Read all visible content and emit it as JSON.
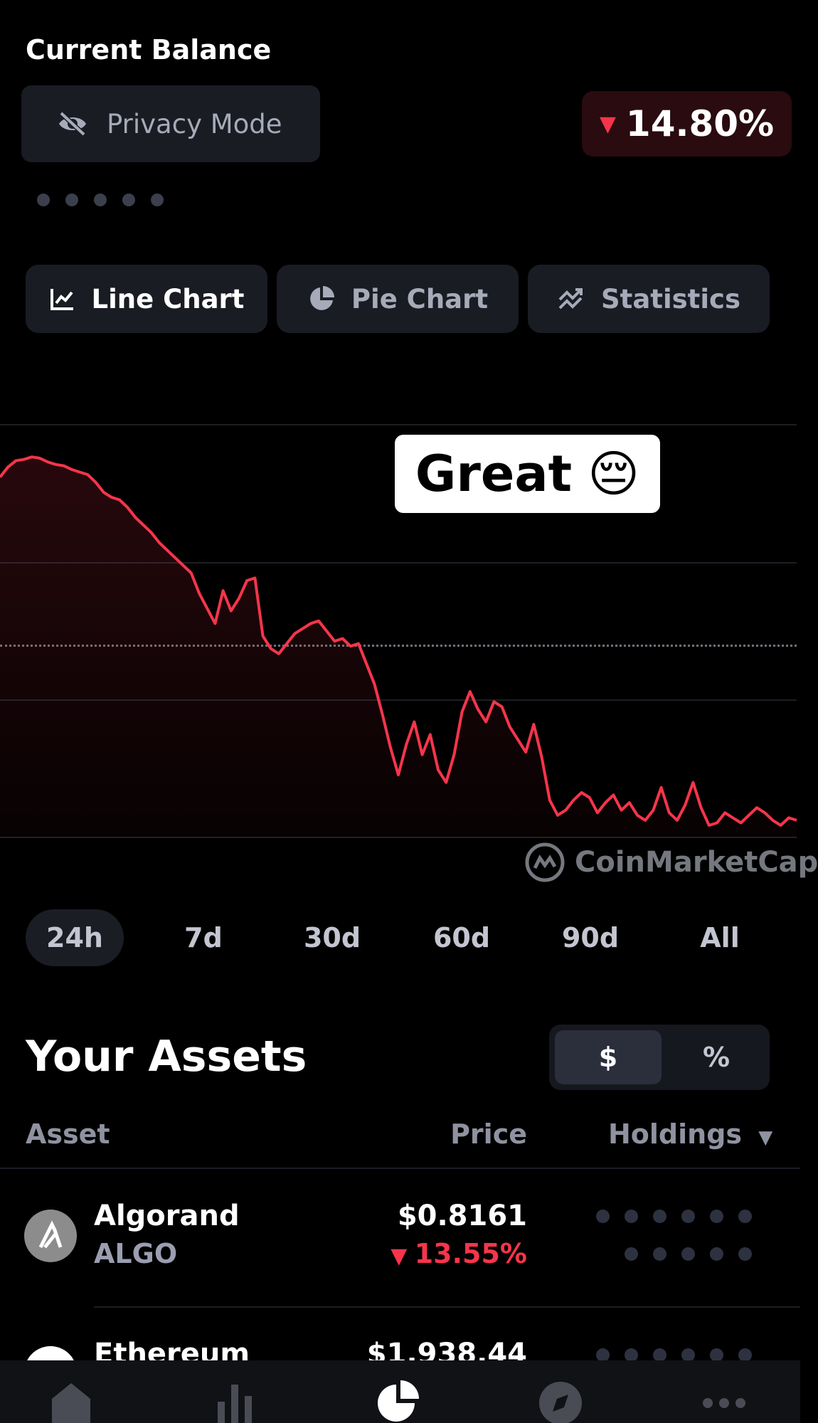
{
  "header": {
    "title": "Current Balance"
  },
  "privacy": {
    "label": "Privacy Mode",
    "icon": "eye-slash-icon"
  },
  "balance_change": {
    "value": "14.80%",
    "direction": "down",
    "color": "#f6354b"
  },
  "masked_balance": [
    "•",
    "•",
    "•",
    "•",
    "•"
  ],
  "tabs": [
    {
      "label": "Line Chart",
      "icon": "line-chart-icon",
      "active": true
    },
    {
      "label": "Pie Chart",
      "icon": "pie-chart-icon",
      "active": false
    },
    {
      "label": "Statistics",
      "icon": "statistics-icon",
      "active": false
    }
  ],
  "overlay": {
    "text": "Great",
    "emoji": "😔"
  },
  "chart_data": {
    "type": "area",
    "color": "#f6354b",
    "x": [
      0,
      1,
      2,
      3,
      4,
      5,
      6,
      7,
      8,
      9,
      10,
      11,
      12,
      13,
      14,
      15,
      16,
      17,
      18,
      19,
      20,
      21,
      22,
      23,
      24,
      25,
      26,
      27,
      28,
      29,
      30,
      31,
      32,
      33,
      34,
      35,
      36,
      37,
      38,
      39,
      40,
      41,
      42,
      43,
      44,
      45,
      46,
      47,
      48,
      49,
      50,
      51,
      52,
      53,
      54,
      55,
      56,
      57,
      58,
      59,
      60,
      61,
      62,
      63,
      64,
      65,
      66,
      67,
      68,
      69,
      70,
      71,
      72,
      73,
      74,
      75,
      76,
      77,
      78,
      79,
      80,
      81,
      82,
      83,
      84,
      85,
      86,
      87,
      88,
      89,
      90,
      91,
      92,
      93,
      94,
      95,
      96,
      97,
      98,
      99,
      100
    ],
    "values": [
      88.0,
      92.0,
      94.5,
      95.0,
      96.0,
      95.5,
      94.0,
      93.0,
      92.5,
      91.0,
      90.0,
      89.0,
      86.0,
      82.0,
      80.0,
      79.0,
      76.0,
      72.0,
      69.0,
      66.0,
      62.0,
      59.0,
      56.0,
      53.0,
      50.0,
      42.0,
      36.0,
      30.0,
      43.0,
      35.0,
      40.0,
      47.0,
      48.0,
      25.0,
      20.0,
      18.0,
      22.0,
      26.0,
      28.0,
      30.0,
      31.0,
      27.0,
      23.0,
      24.0,
      21.0,
      22.0,
      14.0,
      6.0,
      -6.0,
      -19.0,
      -30.0,
      -18.0,
      -9.0,
      -22.0,
      -14.0,
      -28.0,
      -33.0,
      -22.0,
      -5.0,
      3.0,
      -4.0,
      -9.0,
      -1.0,
      -3.0,
      -11.0,
      -16.0,
      -21.0,
      -10.0,
      -23.0,
      -40.0,
      -46.0,
      -44.0,
      -40.0,
      -37.0,
      -39.0,
      -45.0,
      -41.0,
      -38.0,
      -44.0,
      -41.0,
      -46.0,
      -48.0,
      -44.0,
      -35.0,
      -45.0,
      -48.0,
      -42.0,
      -33.0,
      -43.0,
      -50.0,
      -49.0,
      -45.0,
      -47.0,
      -49.0,
      -46.0,
      -43.0,
      -45.0,
      -48.0,
      -50.0,
      -47.0,
      -48.0
    ],
    "ylim": [
      -50,
      100
    ],
    "reference_line": 0,
    "grid": true,
    "attribution": "CoinMarketCap"
  },
  "ranges": [
    {
      "label": "24h",
      "active": true
    },
    {
      "label": "7d",
      "active": false
    },
    {
      "label": "30d",
      "active": false
    },
    {
      "label": "60d",
      "active": false
    },
    {
      "label": "90d",
      "active": false
    },
    {
      "label": "All",
      "active": false
    }
  ],
  "assets": {
    "title": "Your Assets",
    "toggle": {
      "dollar": "$",
      "percent": "%",
      "selected": "$"
    },
    "columns": {
      "asset": "Asset",
      "price": "Price",
      "holdings": "Holdings"
    },
    "rows": [
      {
        "name": "Algorand",
        "symbol": "ALGO",
        "price": "$0.8161",
        "change": "13.55%",
        "icon": "algorand-icon"
      },
      {
        "name": "Ethereum",
        "symbol": "",
        "price": "$1,938.44",
        "change": "",
        "icon": "ethereum-icon"
      }
    ]
  },
  "bottom_nav": [
    "home-icon",
    "markets-icon",
    "portfolio-icon",
    "explore-icon",
    "more-icon"
  ]
}
